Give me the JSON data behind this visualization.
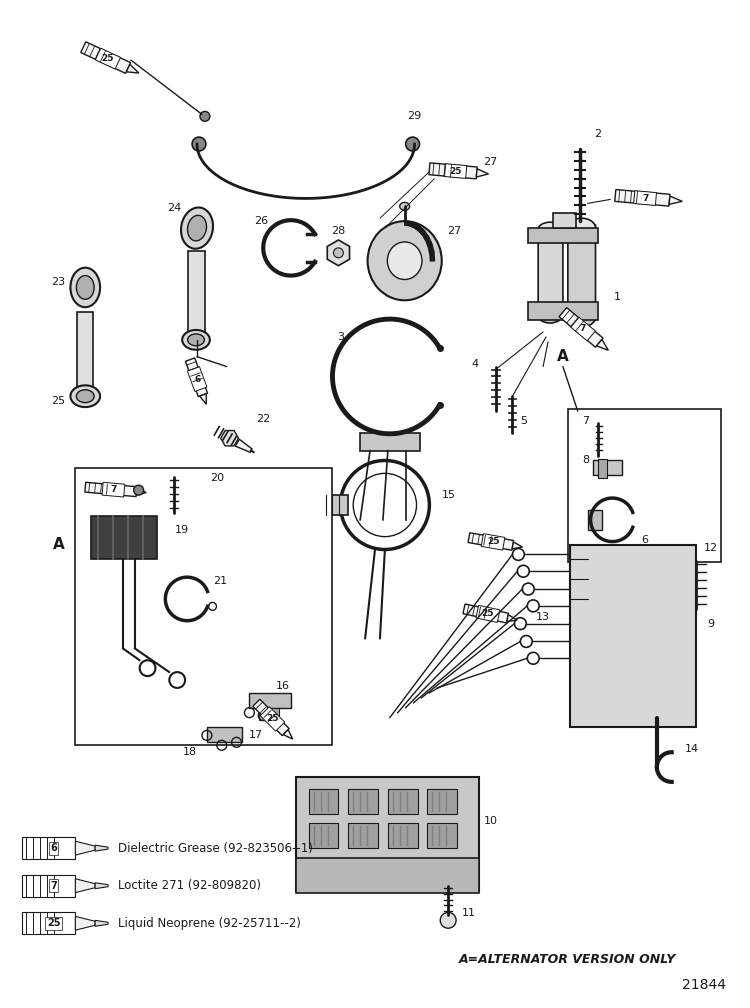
{
  "image_number": "21844",
  "background_color": "#ffffff",
  "line_color": "#1a1a1a",
  "figsize": [
    7.5,
    10.08
  ],
  "dpi": 100,
  "legend_items": [
    {
      "number": "6",
      "text": "Dielectric Grease (92-823506--1)"
    },
    {
      "number": "7",
      "text": "Loctite 271 (92-809820)"
    },
    {
      "number": "25",
      "text": "Liquid Neoprene (92-25711--2)"
    }
  ],
  "footer_text": "A=ALTERNATOR VERSION ONLY"
}
